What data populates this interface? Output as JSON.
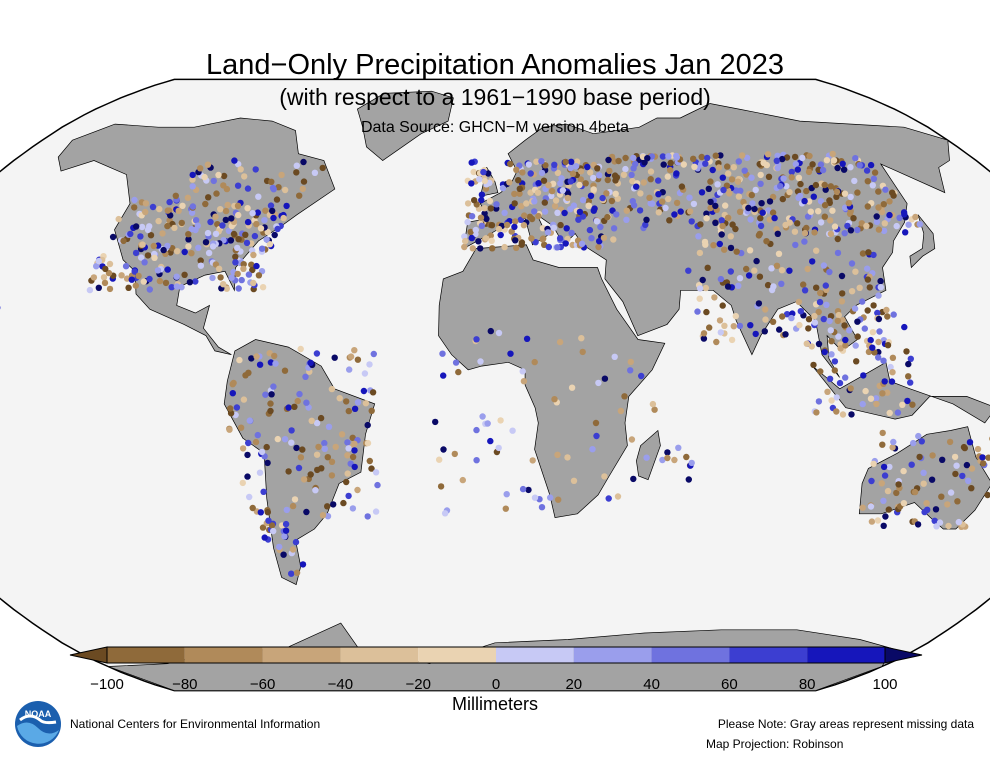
{
  "title": "Land−Only Precipitation Anomalies Jan 2023",
  "subtitle": "(with respect to a 1961−1990 base period)",
  "source": "Data Source: GHCN−M version 4beta",
  "colorbar": {
    "unit": "Millimeters",
    "ticks": [
      "−100",
      "−80",
      "−60",
      "−40",
      "−20",
      "0",
      "20",
      "40",
      "60",
      "80",
      "100"
    ],
    "colors": [
      "#8f6a3a",
      "#b08a5a",
      "#c8a57a",
      "#dcc09a",
      "#ead3b2",
      "#c7c9f5",
      "#9a9eec",
      "#6f72df",
      "#3c3ed1",
      "#1616bb"
    ],
    "over_color": "#090966",
    "under_color": "#6b4a22"
  },
  "map": {
    "ocean_color": "#f4f4f4",
    "land_color": "#a3a3a3",
    "border_color": "#000000",
    "projection_note": "Map Projection: Robinson",
    "missing_note": "Please Note: Gray areas represent missing data"
  },
  "footer": {
    "organization": "National Centers for Environmental Information",
    "logo_name": "noaa-logo"
  }
}
